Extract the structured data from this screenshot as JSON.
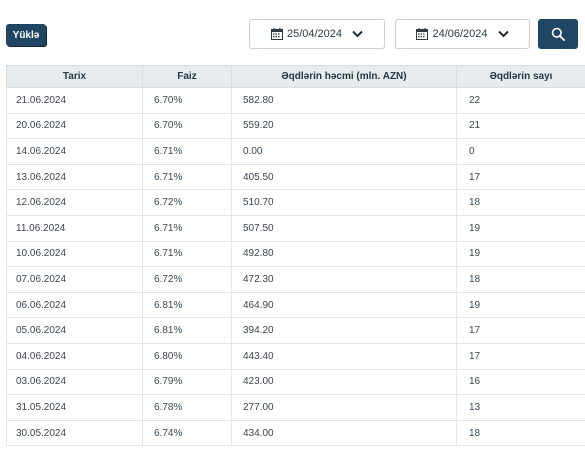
{
  "toolbar": {
    "download_label": "Yüklə",
    "date_from": "25/04/2024",
    "date_to": "24/06/2024"
  },
  "table": {
    "headers": [
      "Tarix",
      "Faiz",
      "Əqdlərin həcmi (mln. AZN)",
      "Əqdlərin sayı"
    ],
    "rows": [
      [
        "21.06.2024",
        "6.70%",
        "582.80",
        "22"
      ],
      [
        "20.06.2024",
        "6.70%",
        "559.20",
        "21"
      ],
      [
        "14.06.2024",
        "6.71%",
        "0.00",
        "0"
      ],
      [
        "13.06.2024",
        "6.71%",
        "405.50",
        "17"
      ],
      [
        "12.06.2024",
        "6.72%",
        "510.70",
        "18"
      ],
      [
        "11.06.2024",
        "6.71%",
        "507.50",
        "19"
      ],
      [
        "10.06.2024",
        "6.71%",
        "492.80",
        "19"
      ],
      [
        "07.06.2024",
        "6.72%",
        "472.30",
        "18"
      ],
      [
        "06.06.2024",
        "6.81%",
        "464.90",
        "19"
      ],
      [
        "05.06.2024",
        "6.81%",
        "394.20",
        "17"
      ],
      [
        "04.06.2024",
        "6.80%",
        "443.40",
        "17"
      ],
      [
        "03.06.2024",
        "6.79%",
        "423.00",
        "16"
      ],
      [
        "31.05.2024",
        "6.78%",
        "277.00",
        "13"
      ],
      [
        "30.05.2024",
        "6.74%",
        "434.00",
        "18"
      ]
    ]
  }
}
